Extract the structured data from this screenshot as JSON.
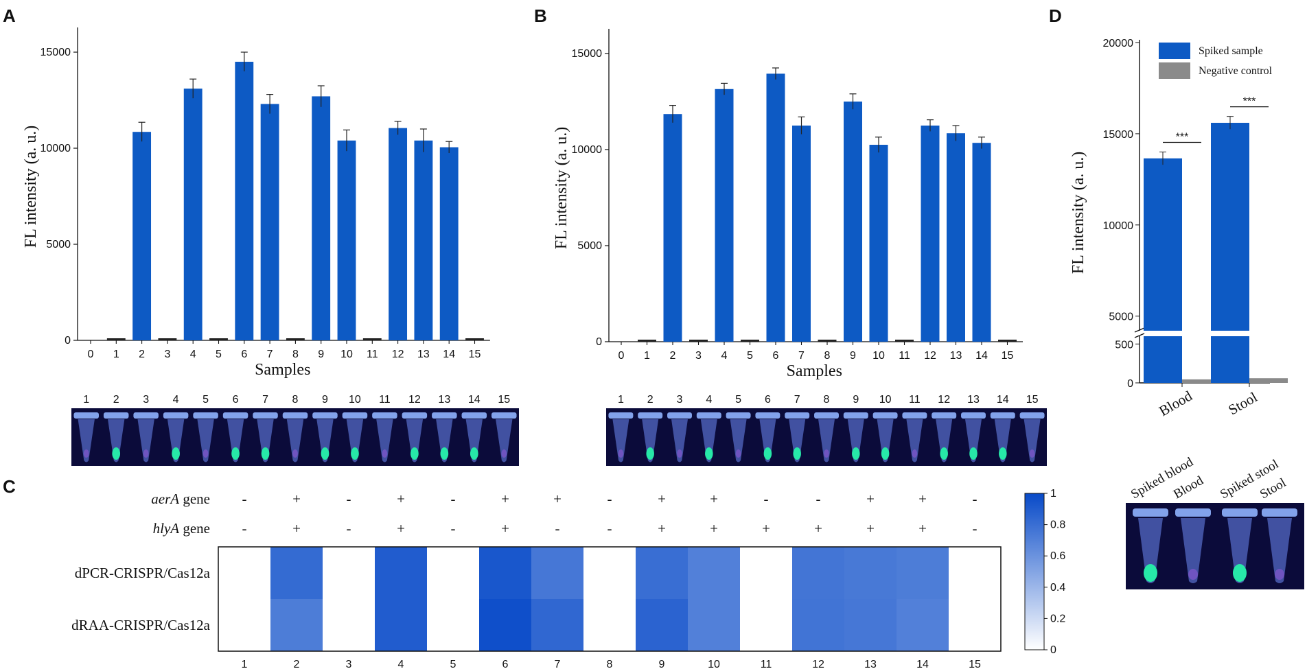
{
  "chart_data": [
    {
      "panel": "A",
      "type": "bar",
      "xlabel": "Samples",
      "ylabel": "FL intensity (a. u.)",
      "ylim": [
        0,
        16000
      ],
      "yticks": [
        0,
        5000,
        10000,
        15000
      ],
      "xticks": [
        0,
        1,
        2,
        3,
        4,
        5,
        6,
        7,
        8,
        9,
        10,
        11,
        12,
        13,
        14,
        15
      ],
      "categories": [
        "1",
        "2",
        "3",
        "4",
        "5",
        "6",
        "7",
        "8",
        "9",
        "10",
        "11",
        "12",
        "13",
        "14",
        "15"
      ],
      "values": [
        40,
        10850,
        60,
        13100,
        80,
        14500,
        12300,
        50,
        12700,
        10400,
        60,
        11050,
        10400,
        10050,
        50
      ],
      "errors": [
        0,
        500,
        0,
        500,
        0,
        500,
        500,
        0,
        550,
        550,
        0,
        350,
        600,
        300,
        0
      ],
      "photo_labels": [
        "1",
        "2",
        "3",
        "4",
        "5",
        "6",
        "7",
        "8",
        "9",
        "10",
        "11",
        "12",
        "13",
        "14",
        "15"
      ]
    },
    {
      "panel": "B",
      "type": "bar",
      "xlabel": "Samples",
      "ylabel": "FL intensity (a. u.)",
      "ylim": [
        0,
        16000
      ],
      "yticks": [
        0,
        5000,
        10000,
        15000
      ],
      "xticks": [
        0,
        1,
        2,
        3,
        4,
        5,
        6,
        7,
        8,
        9,
        10,
        11,
        12,
        13,
        14,
        15
      ],
      "categories": [
        "1",
        "2",
        "3",
        "4",
        "5",
        "6",
        "7",
        "8",
        "9",
        "10",
        "11",
        "12",
        "13",
        "14",
        "15"
      ],
      "values": [
        30,
        11850,
        40,
        13150,
        50,
        13950,
        11250,
        40,
        12500,
        10250,
        40,
        11250,
        10850,
        10350,
        40
      ],
      "errors": [
        0,
        450,
        0,
        300,
        0,
        300,
        450,
        0,
        400,
        400,
        0,
        300,
        400,
        300,
        0
      ],
      "photo_labels": [
        "1",
        "2",
        "3",
        "4",
        "5",
        "6",
        "7",
        "8",
        "9",
        "10",
        "11",
        "12",
        "13",
        "14",
        "15"
      ]
    },
    {
      "panel": "C",
      "type": "heatmap",
      "row_header_labels": [
        {
          "italic": "aerA",
          "plain": " gene"
        },
        {
          "italic": "hlyA",
          "plain": " gene"
        }
      ],
      "aerA": [
        "-",
        "+",
        "-",
        "+",
        "-",
        "+",
        "+",
        "-",
        "+",
        "+",
        "-",
        "-",
        "+",
        "+",
        "-"
      ],
      "hlyA": [
        "-",
        "+",
        "-",
        "+",
        "-",
        "+",
        "-",
        "-",
        "+",
        "+",
        "+",
        "+",
        "+",
        "+",
        "-"
      ],
      "rows": [
        "dPCR-CRISPR/Cas12a",
        "dRAA-CRISPR/Cas12a"
      ],
      "columns": [
        "1",
        "2",
        "3",
        "4",
        "5",
        "6",
        "7",
        "8",
        "9",
        "10",
        "11",
        "12",
        "13",
        "14",
        "15"
      ],
      "values": [
        [
          0,
          0.82,
          0,
          0.9,
          0,
          0.93,
          0.75,
          0,
          0.8,
          0.7,
          0,
          0.76,
          0.74,
          0.72,
          0
        ],
        [
          0,
          0.72,
          0,
          0.9,
          0,
          0.97,
          0.84,
          0,
          0.86,
          0.7,
          0,
          0.77,
          0.75,
          0.7,
          0
        ]
      ],
      "colorbar_range": [
        0,
        1
      ],
      "colorbar_ticks": [
        "0",
        "0.2",
        "0.4",
        "0.6",
        "0.8",
        "1"
      ]
    },
    {
      "panel": "D",
      "type": "bar",
      "ylabel": "FL intensity (a. u.)",
      "yticks_upper": [
        5000,
        10000,
        15000,
        20000
      ],
      "yticks_lower": [
        0,
        500
      ],
      "ylim_upper": [
        4200,
        20000
      ],
      "ylim_lower": [
        0,
        600
      ],
      "categories": [
        "Blood",
        "Stool"
      ],
      "series": [
        {
          "name": "Spiked sample",
          "values": [
            13650,
            15600
          ],
          "errors": [
            350,
            350
          ],
          "color": "#0d5ac4"
        },
        {
          "name": "Negative control",
          "values": [
            45,
            60
          ],
          "errors": [
            5,
            5
          ],
          "color": "#8a8a8a"
        }
      ],
      "significance": [
        "***",
        "***"
      ],
      "photo_labels": [
        "Spiked blood",
        "Blood",
        "Spiked stool",
        "Stool"
      ]
    }
  ],
  "panel_letters": [
    "A",
    "B",
    "C",
    "D"
  ],
  "colors": {
    "bar": "#0d5ac4",
    "control": "#8a8a8a",
    "photo_bg": "#0b0b3a"
  }
}
